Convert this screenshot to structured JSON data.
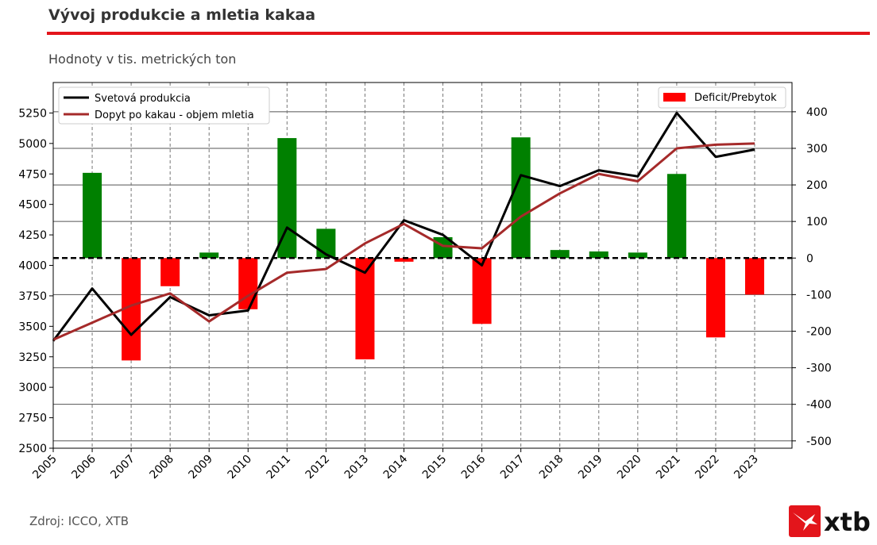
{
  "header": {
    "title": "Vývoj produkcie a mletia kakaa",
    "subtitle": "Hodnoty v tis. metrických ton",
    "accent_color": "#e3151b"
  },
  "footer": {
    "source": "Zdroj: ICCO, XTB",
    "logo_text": "xtb",
    "logo_icon": "xtb-x-logo-icon"
  },
  "chart_data": {
    "type": "line+bar",
    "title": "",
    "xlabel": "",
    "ylabel": "",
    "categories": [
      "2005",
      "2006",
      "2007",
      "2008",
      "2009",
      "2010",
      "2011",
      "2012",
      "2013",
      "2014",
      "2015",
      "2016",
      "2017",
      "2018",
      "2019",
      "2020",
      "2021",
      "2022",
      "2023"
    ],
    "left_axis": {
      "ylim": [
        2500,
        5500
      ],
      "ticks": [
        2500,
        2750,
        3000,
        3250,
        3500,
        3750,
        4000,
        4250,
        4500,
        4750,
        5000,
        5250
      ]
    },
    "right_axis": {
      "ylim": [
        -520,
        480
      ],
      "ticks": [
        -500,
        -400,
        -300,
        -200,
        -100,
        0,
        100,
        200,
        300,
        400
      ]
    },
    "grid": "vertical dashed + horizontal lines at right-axis ticks",
    "zero_line": "dashed black at right 0 / left 4000",
    "series": [
      {
        "name": "Svetová produkcia",
        "axis": "left",
        "color": "#000000",
        "values": [
          3380,
          3810,
          3430,
          3740,
          3590,
          3630,
          4310,
          4090,
          3940,
          4370,
          4250,
          4000,
          4740,
          4650,
          4780,
          4730,
          5250,
          4890,
          4950
        ]
      },
      {
        "name": "Dopyt po kakau - objem mletia",
        "axis": "left",
        "color": "#a52a2a",
        "values": [
          3390,
          3530,
          3670,
          3770,
          3540,
          3750,
          3940,
          3970,
          4180,
          4340,
          4160,
          4140,
          4400,
          4590,
          4750,
          4690,
          4960,
          4990,
          5000
        ]
      }
    ],
    "bars": {
      "name": "Deficit/Prebytok",
      "axis": "right",
      "positive_color": "#008000",
      "negative_color": "#ff0000",
      "categories": [
        "2006",
        "2007",
        "2008",
        "2009",
        "2010",
        "2011",
        "2012",
        "2013",
        "2014",
        "2015",
        "2016",
        "2017",
        "2018",
        "2019",
        "2020",
        "2021",
        "2022",
        "2023"
      ],
      "values": [
        233,
        -280,
        -77,
        15,
        -140,
        328,
        80,
        -277,
        -10,
        57,
        -180,
        330,
        22,
        18,
        15,
        230,
        -217,
        -100
      ]
    },
    "legends": {
      "lines": "top-left",
      "bars": "top-right"
    }
  }
}
